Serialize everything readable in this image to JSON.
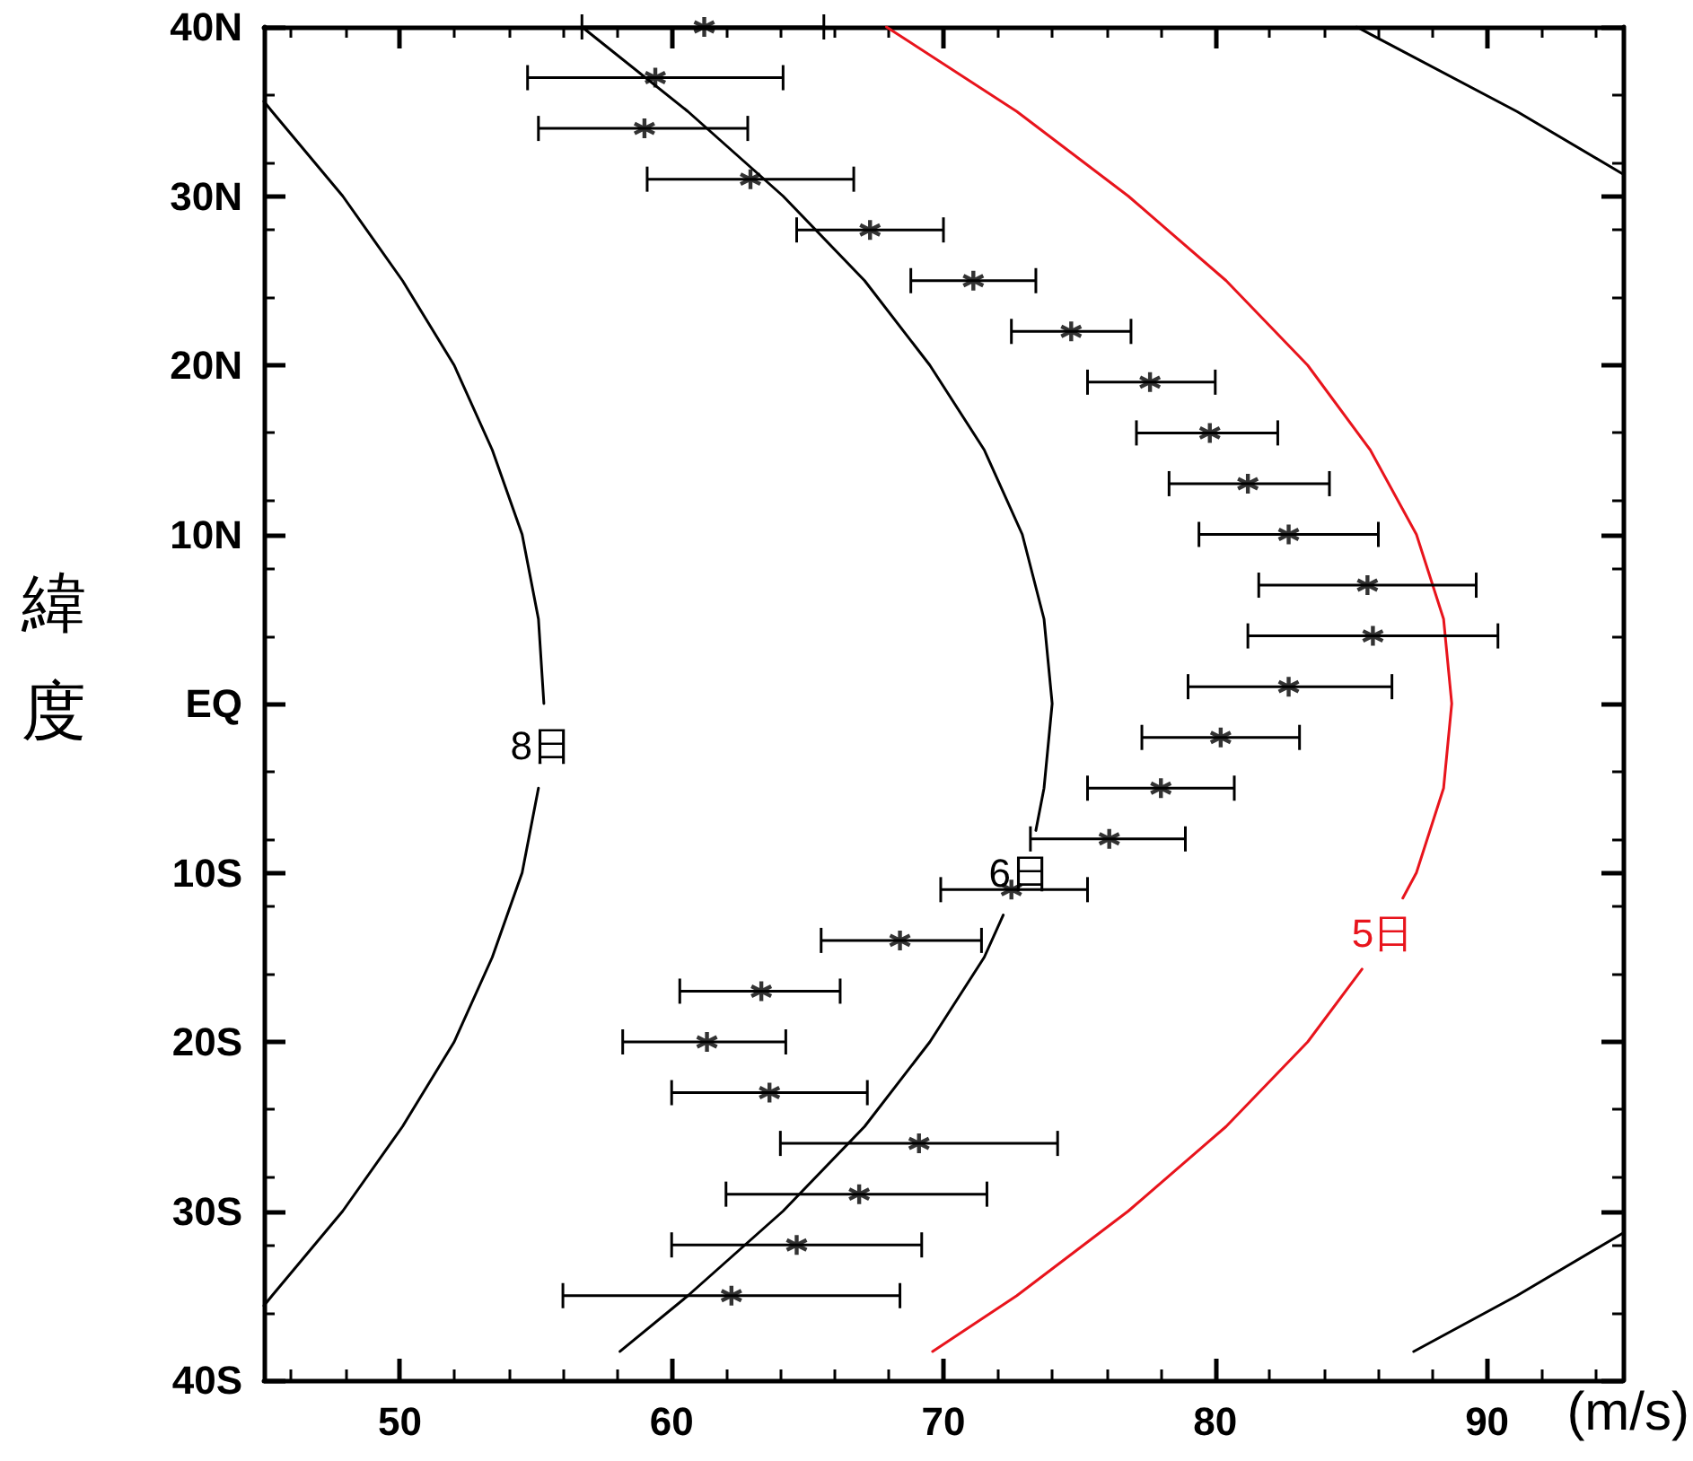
{
  "chart_data": {
    "type": "scatter",
    "xlabel": "(m/s)",
    "ylabel": "緯度",
    "xlim": [
      45,
      95
    ],
    "xticks": [
      50,
      60,
      70,
      80,
      90
    ],
    "ylim": [
      -40,
      40
    ],
    "yticks": [
      {
        "value": -40,
        "label": "40S"
      },
      {
        "value": -30,
        "label": "30S"
      },
      {
        "value": -20,
        "label": "20S"
      },
      {
        "value": -10,
        "label": "10S"
      },
      {
        "value": 0,
        "label": "EQ"
      },
      {
        "value": 10,
        "label": "10N"
      },
      {
        "value": 20,
        "label": "20N"
      },
      {
        "value": 30,
        "label": "30N"
      },
      {
        "value": 40,
        "label": "40N"
      }
    ],
    "grid": false,
    "legend": false,
    "series": [
      {
        "marker": "cross",
        "color": "#000000",
        "x": [
          61.2,
          59.4,
          59.0,
          62.9,
          67.3,
          71.1,
          74.7,
          77.6,
          79.8,
          81.2,
          82.7,
          85.6,
          85.8,
          82.7,
          80.2,
          78.0,
          76.1,
          72.5,
          68.4,
          63.3,
          61.3,
          63.6,
          69.1,
          66.9,
          64.6,
          62.2
        ],
        "values": [
          40,
          37,
          34,
          31,
          28,
          25,
          22,
          19,
          16,
          13,
          10,
          7,
          4,
          1,
          -2,
          -5,
          -8,
          -11,
          -14,
          -17,
          -20,
          -23,
          -26,
          -29,
          -32,
          -35
        ],
        "xerrors": [
          [
            56.7,
            65.6
          ],
          [
            54.7,
            64.1
          ],
          [
            55.1,
            62.8
          ],
          [
            59.1,
            66.7
          ],
          [
            64.6,
            70.0
          ],
          [
            68.8,
            73.4
          ],
          [
            72.5,
            76.9
          ],
          [
            75.3,
            80.0
          ],
          [
            77.1,
            82.3
          ],
          [
            78.3,
            84.2
          ],
          [
            79.4,
            86.0
          ],
          [
            81.6,
            89.6
          ],
          [
            81.2,
            90.4
          ],
          [
            79.0,
            86.5
          ],
          [
            77.3,
            83.1
          ],
          [
            75.3,
            80.7
          ],
          [
            73.2,
            78.9
          ],
          [
            69.9,
            75.3
          ],
          [
            65.5,
            71.4
          ],
          [
            60.3,
            66.2
          ],
          [
            58.2,
            64.2
          ],
          [
            60.0,
            67.2
          ],
          [
            64.0,
            74.2
          ],
          [
            62.0,
            71.6
          ],
          [
            60.0,
            69.2
          ],
          [
            56.0,
            68.4
          ]
        ]
      },
      {
        "type": "line",
        "name": "8日",
        "marker": "none",
        "color": "#000000",
        "line_style": "solid",
        "x": [
          45.0,
          45.3,
          47.9,
          50.1,
          52.0,
          53.4,
          54.5,
          55.1,
          55.3,
          null,
          55.1,
          54.5,
          53.4,
          52.0,
          50.1,
          47.9,
          45.3,
          45.0
        ],
        "values": [
          35.6,
          35,
          30,
          25,
          20,
          15,
          10,
          5,
          0,
          null,
          -5,
          -10,
          -15,
          -20,
          -25,
          -30,
          -35,
          -35.6
        ]
      },
      {
        "type": "line",
        "name": "6日",
        "marker": "none",
        "color": "#000000",
        "line_style": "solid",
        "x": [
          56.7,
          60.6,
          64.1,
          67.1,
          69.5,
          71.5,
          72.9,
          73.7,
          74.0,
          73.7,
          73.4,
          null,
          72.2,
          71.5,
          69.5,
          67.1,
          64.1,
          60.6,
          58.1
        ],
        "values": [
          40,
          35,
          30,
          25,
          20,
          15,
          10,
          5,
          0,
          -5,
          -7.5,
          null,
          -12.5,
          -15,
          -20,
          -25,
          -30,
          -35,
          -38.3
        ]
      },
      {
        "type": "line",
        "name": "5日",
        "marker": "none",
        "color": "#e8141c",
        "line_style": "solid",
        "x": [
          67.9,
          72.7,
          76.8,
          80.4,
          83.4,
          85.7,
          87.4,
          88.4,
          88.7,
          88.4,
          87.4,
          86.9,
          null,
          85.4,
          83.4,
          80.4,
          76.8,
          72.7,
          69.6
        ],
        "values": [
          40,
          35,
          30,
          25,
          20,
          15,
          10,
          5,
          0,
          -5,
          -10,
          -11.5,
          null,
          -15.7,
          -20,
          -25,
          -30,
          -35,
          -38.3
        ]
      },
      {
        "type": "line",
        "marker": "none",
        "color": "#000000",
        "line_style": "solid",
        "x": [
          85.2,
          91.1,
          95.0
        ],
        "values": [
          40,
          35,
          31.3
        ]
      },
      {
        "type": "line",
        "marker": "none",
        "color": "#000000",
        "line_style": "solid",
        "x": [
          87.3,
          91.1,
          95.0
        ],
        "values": [
          -38.3,
          -35,
          -31.3
        ]
      }
    ]
  }
}
